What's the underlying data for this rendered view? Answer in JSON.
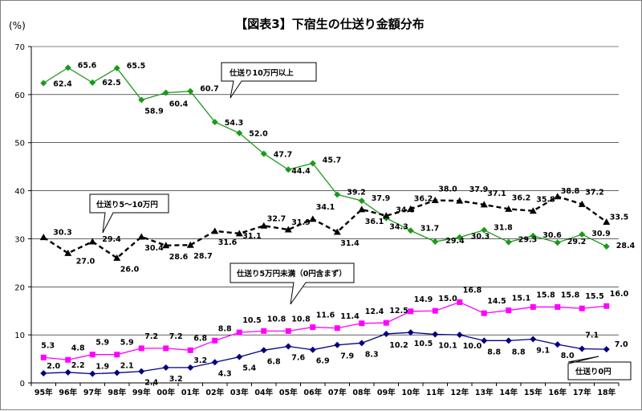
{
  "chart_data": {
    "type": "line",
    "title": "【図表3】下宿生の仕送り金額分布",
    "unit_label": "(%)",
    "xlabel": "",
    "ylabel": "",
    "ylim": [
      0,
      70
    ],
    "yticks": [
      0,
      10,
      20,
      30,
      40,
      50,
      60,
      70
    ],
    "grid": "horizontal",
    "categories": [
      "95年",
      "96年",
      "97年",
      "98年",
      "99年",
      "00年",
      "01年",
      "02年",
      "03年",
      "04年",
      "05年",
      "06年",
      "07年",
      "08年",
      "09年",
      "10年",
      "11年",
      "12年",
      "13年",
      "14年",
      "15年",
      "16年",
      "17年",
      "18年"
    ],
    "series": [
      {
        "name": "仕送り10万円以上",
        "color": "#1a9a1a",
        "marker": "diamond",
        "dash": "solid",
        "values": [
          62.4,
          65.6,
          62.5,
          65.5,
          58.9,
          60.4,
          60.7,
          54.3,
          52.0,
          47.7,
          44.4,
          45.7,
          39.2,
          37.9,
          34.3,
          31.7,
          29.4,
          30.3,
          31.8,
          29.3,
          30.6,
          29.2,
          30.9,
          28.4
        ],
        "labels": [
          "62.4",
          "65.6",
          "62.5",
          "65.5",
          "58.9",
          "60.4",
          "60.7",
          "54.3",
          "52.0",
          "47.7",
          "44.4",
          "45.7",
          "39.2",
          "37.9",
          "34.3",
          "31.7",
          "29.4",
          "30.3",
          "31.8",
          "29.3",
          "30.6",
          "29.2",
          "30.9",
          "28.4"
        ]
      },
      {
        "name": "仕送り5～10万円",
        "color": "#000000",
        "marker": "triangle",
        "dash": "dashed",
        "values": [
          30.3,
          27.0,
          29.4,
          26.0,
          30.4,
          28.6,
          28.7,
          31.6,
          31.1,
          32.7,
          31.9,
          34.1,
          31.4,
          36.1,
          34.8,
          36.2,
          38.0,
          37.9,
          37.1,
          36.2,
          35.8,
          38.8,
          37.2,
          33.5
        ],
        "labels": [
          "30.3",
          "27.0",
          "29.4",
          "26.0",
          "30.4",
          "28.6",
          "28.7",
          "31.6",
          "31.1",
          "32.7",
          "31.9",
          "34.1",
          "31.4",
          "36.1",
          "34.8",
          "36.2",
          "38.0",
          "37.9",
          "37.1",
          "36.2",
          "35.8",
          "38.8",
          "37.2",
          "33.5"
        ]
      },
      {
        "name": "仕送り5万円未満（0円含まず）",
        "color": "#ff00ff",
        "marker": "square",
        "dash": "solid",
        "values": [
          5.3,
          4.8,
          5.9,
          5.9,
          7.2,
          7.2,
          6.8,
          8.8,
          10.5,
          10.8,
          10.8,
          11.6,
          11.4,
          12.4,
          12.5,
          14.9,
          15.0,
          16.8,
          14.5,
          15.1,
          15.8,
          15.8,
          15.5,
          16.0
        ],
        "labels": [
          "5.3",
          "4.8",
          "5.9",
          "5.9",
          "7.2",
          "7.2",
          "6.8",
          "8.8",
          "10.5",
          "10.8",
          "10.8",
          "11.6",
          "11.4",
          "12.4",
          "12.5",
          "14.9",
          "15.0",
          "16.8",
          "14.5",
          "15.1",
          "15.8",
          "15.8",
          "15.5",
          "16.0"
        ]
      },
      {
        "name": "仕送り0円",
        "color": "#00007f",
        "marker": "diamond",
        "dash": "solid",
        "values": [
          2.0,
          2.2,
          1.9,
          2.1,
          2.4,
          3.2,
          3.2,
          4.3,
          5.4,
          6.8,
          7.6,
          6.9,
          7.9,
          8.3,
          10.2,
          10.5,
          10.1,
          10.0,
          8.8,
          8.8,
          9.1,
          8.0,
          7.1,
          7.0
        ],
        "labels": [
          "2.0",
          "2.2",
          "1.9",
          "2.1",
          "2.4",
          "3.2",
          "3.2",
          "4.3",
          "5.4",
          "6.8",
          "7.6",
          "6.9",
          "7.9",
          "8.3",
          "10.2",
          "10.5",
          "10.1",
          "10.0",
          "8.8",
          "8.8",
          "9.1",
          "8.0",
          "7.1",
          "7.0"
        ]
      }
    ],
    "annotations": [
      "仕送り10万円以上",
      "仕送り5～10万円",
      "仕送り5万円未満（0円含まず）",
      "仕送り0円"
    ]
  }
}
